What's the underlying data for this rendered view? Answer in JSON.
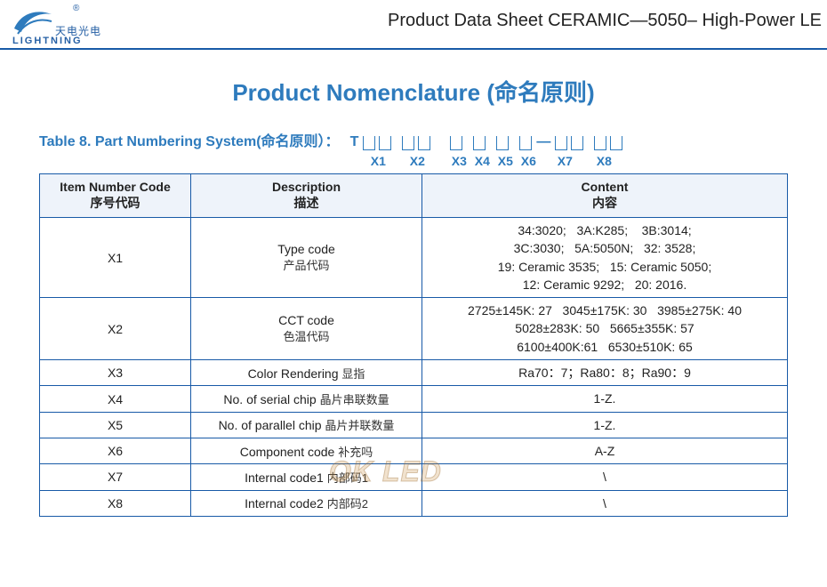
{
  "header": {
    "logo": {
      "trademark": "®",
      "cn": "天电光电",
      "en": "LIGHTNING"
    },
    "title": "Product Data Sheet CERAMIC—5050– High-Power LE"
  },
  "section_title": "Product Nomenclature (命名原则)",
  "pn_caption": "Table 8. Part Numbering System(命名原则）：",
  "pn_prefix": "T",
  "pn_groups": [
    {
      "boxes": 2,
      "label": "X1",
      "gap_after": "sm"
    },
    {
      "boxes": 2,
      "label": "X2",
      "gap_after": "lg"
    },
    {
      "boxes": 1,
      "label": "X3",
      "gap_after": "sm"
    },
    {
      "boxes": 1,
      "label": "X4",
      "gap_after": "sm"
    },
    {
      "boxes": 1,
      "label": "X5",
      "gap_after": "sm"
    },
    {
      "boxes": 1,
      "label": "X6",
      "dash_after": true
    },
    {
      "boxes": 2,
      "label": "X7",
      "gap_after": "sm"
    },
    {
      "boxes": 2,
      "label": "X8"
    }
  ],
  "table": {
    "headers": {
      "code": {
        "en": "Item Number Code",
        "cn": "序号代码"
      },
      "desc": {
        "en": "Description",
        "cn": "描述"
      },
      "content": {
        "en": "Content",
        "cn": "内容"
      }
    },
    "rows": [
      {
        "code": "X1",
        "desc_en": "Type code",
        "desc_cn": "产品代码",
        "content_lines": [
          "34:3020;   3A:K285;    3B:3014;",
          "3C:3030;   5A:5050N;   32: 3528;",
          "19: Ceramic 3535;   15: Ceramic 5050;",
          "12: Ceramic 9292;   20: 2016."
        ]
      },
      {
        "code": "X2",
        "desc_en": "CCT code",
        "desc_cn": "色温代码",
        "content_lines": [
          "2725±145K: 27   3045±175K: 30   3985±275K: 40",
          "5028±283K: 50   5665±355K: 57",
          "6100±400K:61   6530±510K: 65"
        ]
      },
      {
        "code": "X3",
        "desc_en": "Color Rendering",
        "desc_cn": "显指",
        "inline_desc": true,
        "content_lines": [
          "Ra70：7；Ra80：8；Ra90：9"
        ]
      },
      {
        "code": "X4",
        "desc_en": "No. of serial chip",
        "desc_cn": "晶片串联数量",
        "inline_desc": true,
        "content_lines": [
          "1-Z."
        ]
      },
      {
        "code": "X5",
        "desc_en": "No. of parallel chip",
        "desc_cn": "晶片并联数量",
        "inline_desc": true,
        "content_lines": [
          "1-Z."
        ]
      },
      {
        "code": "X6",
        "desc_en": "Component code",
        "desc_cn": "补充吗",
        "inline_desc": true,
        "content_lines": [
          "A-Z"
        ]
      },
      {
        "code": "X7",
        "desc_en": "Internal code1",
        "desc_cn": "内部码1",
        "inline_desc": true,
        "content_lines": [
          "\\"
        ]
      },
      {
        "code": "X8",
        "desc_en": "Internal code2",
        "desc_cn": "内部码2",
        "inline_desc": true,
        "content_lines": [
          "\\"
        ]
      }
    ]
  },
  "watermark": "OK LED",
  "colors": {
    "brand_blue": "#2e7bbd",
    "border_blue": "#185aa7",
    "header_bg": "#eef3fa"
  }
}
